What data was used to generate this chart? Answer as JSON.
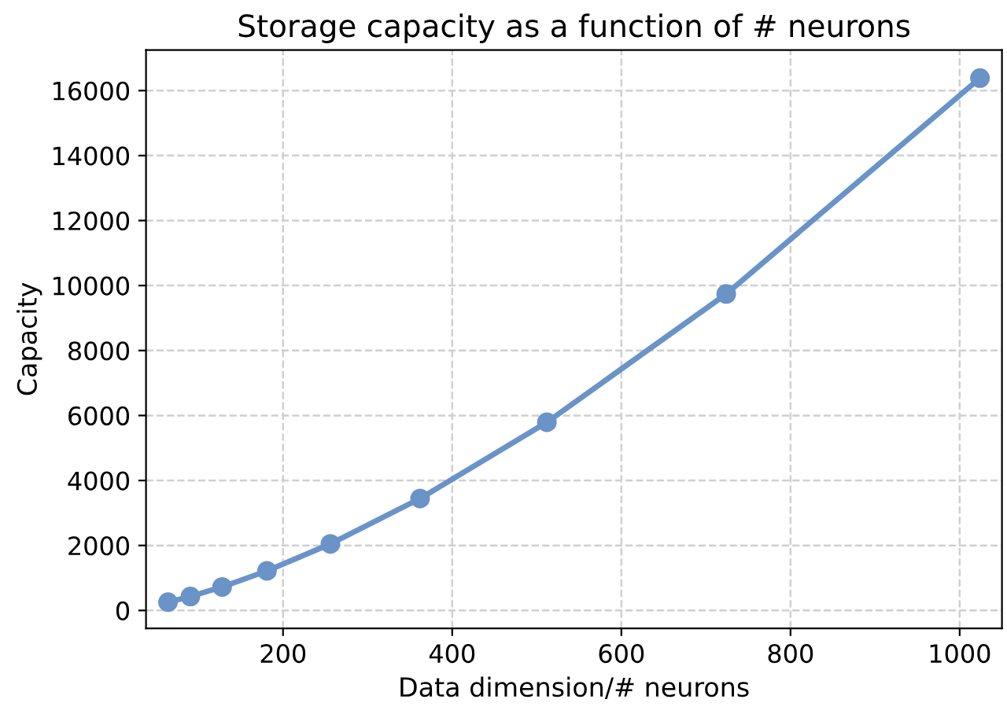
{
  "chart_data": {
    "type": "line",
    "title": "Storage capacity as a function of # neurons",
    "xlabel": "Data dimension/# neurons",
    "ylabel": "Capacity",
    "x": [
      64,
      90.5,
      128,
      181,
      256,
      362,
      512,
      724,
      1024
    ],
    "series": [
      {
        "color": "#6a93c8",
        "values": [
          256,
          430,
          724,
          1217,
          2048,
          3444,
          5793,
          9741,
          16384
        ]
      }
    ],
    "xlim": [
      38,
      1050
    ],
    "ylim": [
      -550,
      17250
    ],
    "xticks": [
      200,
      400,
      600,
      800,
      1000
    ],
    "yticks": [
      0,
      2000,
      4000,
      6000,
      8000,
      10000,
      12000,
      14000,
      16000
    ],
    "grid": true,
    "marker": "circle",
    "line_style": "solid"
  }
}
